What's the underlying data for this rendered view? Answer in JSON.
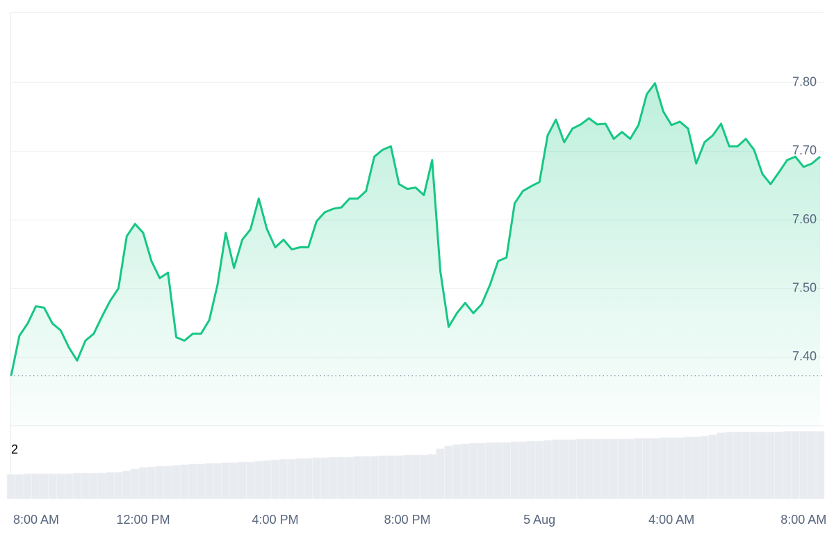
{
  "chart_data": {
    "type": "line",
    "color": "#16c784",
    "categories": [
      "8:00 AM",
      null,
      null,
      null,
      null,
      null,
      null,
      null,
      null,
      null,
      null,
      null,
      null,
      null,
      null,
      null,
      "12:00 PM",
      null,
      null,
      null,
      null,
      null,
      null,
      null,
      null,
      null,
      null,
      null,
      null,
      null,
      null,
      null,
      "4:00 PM",
      null,
      null,
      null,
      null,
      null,
      null,
      null,
      null,
      null,
      null,
      null,
      null,
      null,
      null,
      null,
      "8:00 PM",
      null,
      null,
      null,
      null,
      null,
      null,
      null,
      null,
      null,
      null,
      null,
      null,
      null,
      null,
      null,
      "5 Aug",
      null,
      null,
      null,
      null,
      null,
      null,
      null,
      null,
      null,
      null,
      null,
      null,
      null,
      null,
      null,
      "4:00 AM",
      null,
      null,
      null,
      null,
      null,
      null,
      null,
      null,
      null,
      null,
      null,
      null,
      null,
      null,
      null,
      "8:00 AM",
      null,
      null
    ],
    "values": [
      7.373,
      7.431,
      7.449,
      7.474,
      7.472,
      7.449,
      7.439,
      7.414,
      7.395,
      7.424,
      7.434,
      7.459,
      7.482,
      7.5,
      7.576,
      7.594,
      7.581,
      7.54,
      7.515,
      7.523,
      7.429,
      7.424,
      7.434,
      7.434,
      7.454,
      7.505,
      7.581,
      7.53,
      7.571,
      7.586,
      7.631,
      7.586,
      7.56,
      7.571,
      7.557,
      7.56,
      7.56,
      7.598,
      7.611,
      7.616,
      7.618,
      7.631,
      7.631,
      7.642,
      7.692,
      7.702,
      7.707,
      7.652,
      7.645,
      7.647,
      7.636,
      7.687,
      7.525,
      7.444,
      7.464,
      7.479,
      7.464,
      7.477,
      7.505,
      7.54,
      7.545,
      7.624,
      7.642,
      7.649,
      7.655,
      7.723,
      7.746,
      7.713,
      7.733,
      7.739,
      7.748,
      7.739,
      7.74,
      7.718,
      7.728,
      7.718,
      7.738,
      7.783,
      7.799,
      7.758,
      7.738,
      7.743,
      7.733,
      7.682,
      7.713,
      7.723,
      7.74,
      7.707,
      7.707,
      7.718,
      7.702,
      7.667,
      7.652,
      7.669,
      7.687,
      7.692,
      7.677,
      7.682,
      7.692
    ],
    "ylim": [
      7.3,
      7.9
    ],
    "yticks": [
      {
        "value": 7.4,
        "label": "7.40"
      },
      {
        "value": 7.5,
        "label": "7.50"
      },
      {
        "value": 7.6,
        "label": "7.60"
      },
      {
        "value": 7.7,
        "label": "7.70"
      },
      {
        "value": 7.8,
        "label": "7.80"
      }
    ],
    "grid": true,
    "volume": {
      "label": 2,
      "color": "#e8ebf0",
      "ylim": [
        0,
        102
      ],
      "values": [
        35,
        35,
        36,
        36,
        36,
        36,
        36,
        36,
        37,
        37,
        37,
        37,
        38,
        38,
        40,
        43,
        45,
        46,
        47,
        47,
        48,
        49,
        50,
        50,
        51,
        51,
        52,
        52,
        53,
        53,
        54,
        55,
        56,
        57,
        57,
        58,
        58,
        59,
        59,
        60,
        60,
        60,
        61,
        61,
        61,
        62,
        62,
        62,
        63,
        63,
        63,
        64,
        72,
        76,
        78,
        79,
        80,
        80,
        81,
        81,
        81,
        82,
        82,
        83,
        83,
        84,
        85,
        85,
        85,
        86,
        86,
        86,
        86,
        86,
        86,
        86,
        87,
        87,
        87,
        88,
        88,
        88,
        89,
        89,
        90,
        92,
        95,
        96,
        96,
        96,
        96,
        96,
        96,
        96,
        97,
        97,
        97,
        97,
        97
      ]
    }
  }
}
